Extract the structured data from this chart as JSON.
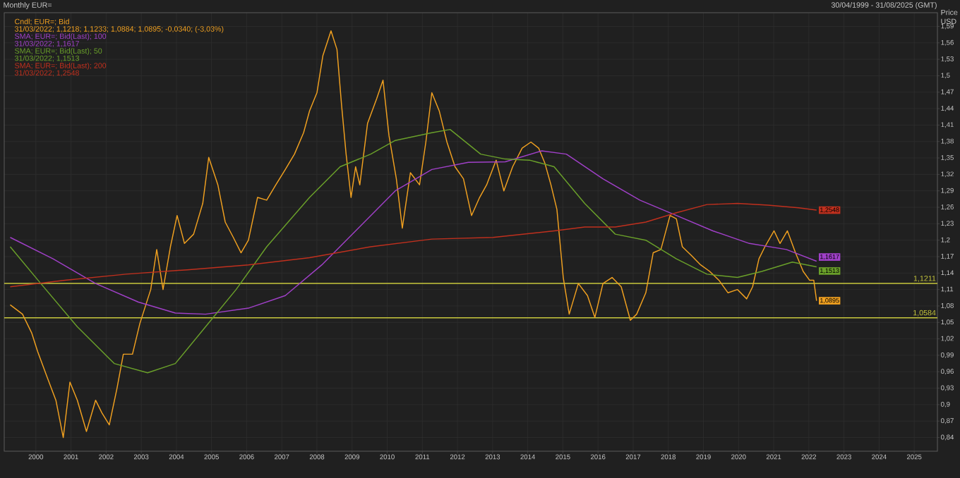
{
  "chart_data": {
    "type": "line",
    "title": "Monthly EUR=",
    "subtitle": "30/04/1999 - 31/08/2025 (GMT)",
    "ylabel": "Price USD",
    "xlim": [
      1999.1,
      2025.66
    ],
    "ylim": [
      0.815,
      1.615
    ],
    "xticks": [
      2000,
      2001,
      2002,
      2003,
      2004,
      2005,
      2006,
      2007,
      2008,
      2009,
      2010,
      2011,
      2012,
      2013,
      2014,
      2015,
      2016,
      2017,
      2018,
      2019,
      2020,
      2021,
      2022,
      2023,
      2024,
      2025
    ],
    "yticks": [
      {
        "value": 0.84,
        "label": "0,84"
      },
      {
        "value": 0.87,
        "label": "0,87"
      },
      {
        "value": 0.9,
        "label": "0,9"
      },
      {
        "value": 0.93,
        "label": "0,93"
      },
      {
        "value": 0.96,
        "label": "0,96"
      },
      {
        "value": 0.99,
        "label": "0,99"
      },
      {
        "value": 1.02,
        "label": "1,02"
      },
      {
        "value": 1.05,
        "label": "1,05"
      },
      {
        "value": 1.08,
        "label": "1,08"
      },
      {
        "value": 1.11,
        "label": "1,11"
      },
      {
        "value": 1.14,
        "label": "1,14"
      },
      {
        "value": 1.17,
        "label": "1,17"
      },
      {
        "value": 1.2,
        "label": "1,2"
      },
      {
        "value": 1.23,
        "label": "1,23"
      },
      {
        "value": 1.26,
        "label": "1,26"
      },
      {
        "value": 1.29,
        "label": "1,29"
      },
      {
        "value": 1.32,
        "label": "1,32"
      },
      {
        "value": 1.35,
        "label": "1,35"
      },
      {
        "value": 1.38,
        "label": "1,38"
      },
      {
        "value": 1.41,
        "label": "1,41"
      },
      {
        "value": 1.44,
        "label": "1,44"
      },
      {
        "value": 1.47,
        "label": "1,47"
      },
      {
        "value": 1.5,
        "label": "1,5"
      },
      {
        "value": 1.53,
        "label": "1,53"
      },
      {
        "value": 1.56,
        "label": "1,56"
      },
      {
        "value": 1.59,
        "label": "1,59"
      }
    ],
    "grid": true,
    "legend": "top left",
    "marker": "none",
    "line_style": "solid",
    "series": [
      {
        "name": "Cndl; EUR=; Bid",
        "color": "#f0a020",
        "x": [
          1999.27,
          1999.62,
          1999.88,
          2000.05,
          2000.31,
          2000.57,
          2000.78,
          2000.97,
          2001.18,
          2001.44,
          2001.7,
          2001.88,
          2002.09,
          2002.31,
          2002.49,
          2002.75,
          2002.96,
          2003.27,
          2003.44,
          2003.62,
          2003.83,
          2004.02,
          2004.23,
          2004.49,
          2004.75,
          2004.92,
          2005.18,
          2005.39,
          2005.62,
          2005.84,
          2006.05,
          2006.31,
          2006.57,
          2006.83,
          2007.1,
          2007.36,
          2007.62,
          2007.79,
          2008.0,
          2008.17,
          2008.4,
          2008.57,
          2008.7,
          2008.83,
          2008.97,
          2009.1,
          2009.22,
          2009.44,
          2009.7,
          2009.88,
          2010.05,
          2010.26,
          2010.43,
          2010.66,
          2010.92,
          2011.1,
          2011.27,
          2011.48,
          2011.7,
          2011.93,
          2012.17,
          2012.4,
          2012.63,
          2012.83,
          2013.1,
          2013.32,
          2013.57,
          2013.84,
          2014.09,
          2014.31,
          2014.49,
          2014.66,
          2014.83,
          2015.01,
          2015.18,
          2015.44,
          2015.7,
          2015.91,
          2016.14,
          2016.4,
          2016.66,
          2016.92,
          2017.1,
          2017.36,
          2017.57,
          2017.79,
          2018.05,
          2018.23,
          2018.4,
          2018.66,
          2018.92,
          2019.18,
          2019.44,
          2019.7,
          2019.97,
          2020.23,
          2020.4,
          2020.58,
          2020.75,
          2021.01,
          2021.18,
          2021.39,
          2021.62,
          2021.84,
          2022.02,
          2022.14,
          2022.22
        ],
        "values": [
          1.082,
          1.065,
          1.031,
          0.997,
          0.952,
          0.908,
          0.84,
          0.941,
          0.908,
          0.851,
          0.908,
          0.885,
          0.863,
          0.93,
          0.992,
          0.992,
          1.048,
          1.11,
          1.183,
          1.11,
          1.188,
          1.245,
          1.194,
          1.211,
          1.267,
          1.351,
          1.301,
          1.233,
          1.205,
          1.177,
          1.2,
          1.278,
          1.273,
          1.301,
          1.329,
          1.357,
          1.396,
          1.436,
          1.469,
          1.537,
          1.582,
          1.548,
          1.447,
          1.357,
          1.278,
          1.334,
          1.301,
          1.413,
          1.458,
          1.492,
          1.391,
          1.312,
          1.222,
          1.323,
          1.301,
          1.379,
          1.469,
          1.436,
          1.379,
          1.334,
          1.312,
          1.245,
          1.278,
          1.301,
          1.346,
          1.29,
          1.334,
          1.368,
          1.379,
          1.368,
          1.34,
          1.301,
          1.256,
          1.132,
          1.065,
          1.121,
          1.099,
          1.059,
          1.121,
          1.132,
          1.115,
          1.054,
          1.065,
          1.104,
          1.177,
          1.183,
          1.245,
          1.239,
          1.188,
          1.172,
          1.155,
          1.143,
          1.127,
          1.104,
          1.11,
          1.093,
          1.115,
          1.166,
          1.188,
          1.217,
          1.194,
          1.217,
          1.177,
          1.143,
          1.127,
          1.127,
          1.0895
        ],
        "value_labels": [
          null,
          null,
          null,
          null,
          null,
          null,
          null,
          null,
          null,
          null,
          null,
          null,
          null,
          null,
          null,
          null,
          null,
          null,
          null,
          null,
          null,
          null,
          null,
          null,
          null,
          null,
          null,
          null,
          null,
          null,
          null,
          null,
          null,
          null,
          null,
          null,
          null,
          null,
          null,
          null,
          null,
          null,
          null,
          null,
          null,
          null,
          null,
          null,
          null,
          null,
          null,
          null,
          null,
          null,
          null,
          null,
          null,
          null,
          null,
          null,
          null,
          null,
          null,
          null,
          null,
          null,
          null,
          null,
          null,
          null,
          null,
          null,
          null,
          null,
          null,
          null,
          null,
          null,
          null,
          null,
          null,
          null,
          null,
          null,
          null,
          null,
          null,
          null,
          null,
          null,
          null,
          null,
          null,
          null,
          null,
          null,
          null,
          null,
          null,
          null,
          null,
          null,
          null,
          null,
          null,
          null,
          "1,0895"
        ]
      },
      {
        "name": "SMA; EUR=; Bid(Last); 100",
        "color": "#a040c8",
        "x": [
          1999.27,
          2000.49,
          2001.7,
          2002.92,
          2003.97,
          2004.83,
          2006.05,
          2007.1,
          2008.14,
          2009.18,
          2010.23,
          2011.27,
          2012.31,
          2013.36,
          2014.4,
          2015.1,
          2016.14,
          2017.19,
          2018.23,
          2019.27,
          2020.31,
          2021.36,
          2022.22
        ],
        "values": [
          1.205,
          1.166,
          1.121,
          1.087,
          1.067,
          1.065,
          1.076,
          1.099,
          1.155,
          1.222,
          1.29,
          1.329,
          1.342,
          1.343,
          1.363,
          1.357,
          1.312,
          1.273,
          1.245,
          1.217,
          1.194,
          1.183,
          1.1617
        ],
        "value_labels": [
          null,
          null,
          null,
          null,
          null,
          null,
          null,
          null,
          null,
          null,
          null,
          null,
          null,
          null,
          null,
          null,
          null,
          null,
          null,
          null,
          null,
          null,
          "1,1617"
        ]
      },
      {
        "name": "SMA; EUR=; Bid(Last); 50",
        "color": "#6aa02a",
        "x": [
          1999.27,
          2000.14,
          2001.18,
          2002.23,
          2003.18,
          2003.97,
          2004.83,
          2005.7,
          2006.57,
          2007.79,
          2008.66,
          2009.53,
          2010.23,
          2011.27,
          2011.79,
          2012.66,
          2013.36,
          2014.05,
          2014.75,
          2015.62,
          2016.49,
          2017.36,
          2018.23,
          2019.1,
          2019.97,
          2020.66,
          2021.53,
          2022.22
        ],
        "values": [
          1.188,
          1.121,
          1.042,
          0.975,
          0.958,
          0.975,
          1.042,
          1.11,
          1.188,
          1.278,
          1.334,
          1.357,
          1.382,
          1.396,
          1.402,
          1.357,
          1.348,
          1.346,
          1.334,
          1.267,
          1.211,
          1.2,
          1.166,
          1.138,
          1.132,
          1.143,
          1.16,
          1.1513
        ],
        "value_labels": [
          null,
          null,
          null,
          null,
          null,
          null,
          null,
          null,
          null,
          null,
          null,
          null,
          null,
          null,
          null,
          null,
          null,
          null,
          null,
          null,
          null,
          null,
          null,
          null,
          null,
          null,
          null,
          "1,1513"
        ]
      },
      {
        "name": "SMA; EUR=; Bid(Last); 200",
        "color": "#c0301e",
        "x": [
          1999.27,
          2000.83,
          2002.57,
          2004.31,
          2006.05,
          2007.79,
          2009.53,
          2011.27,
          2013.01,
          2014.75,
          2015.62,
          2016.49,
          2017.36,
          2018.23,
          2019.1,
          2019.97,
          2020.84,
          2021.71,
          2022.22
        ],
        "values": [
          1.115,
          1.127,
          1.138,
          1.146,
          1.155,
          1.168,
          1.188,
          1.202,
          1.205,
          1.217,
          1.224,
          1.224,
          1.233,
          1.25,
          1.265,
          1.267,
          1.264,
          1.259,
          1.2548
        ],
        "value_labels": [
          null,
          null,
          null,
          null,
          null,
          null,
          null,
          null,
          null,
          null,
          null,
          null,
          null,
          null,
          null,
          null,
          null,
          null,
          "1,2548"
        ]
      }
    ],
    "ref_lines": [
      {
        "axis": "y",
        "value": 1.1211,
        "label": "1,1211",
        "color": "#c8c83c"
      },
      {
        "axis": "y",
        "value": 1.0584,
        "label": "1,0584",
        "color": "#c8c83c"
      }
    ],
    "annotations": [
      "31/03/2022; 1,1218; 1,1233; 1,0884; 1,0895; -0,0340; (-3,03%)",
      "31/03/2022; 1,1617",
      "31/03/2022; 1,1513",
      "31/03/2022; 1,2548"
    ]
  }
}
